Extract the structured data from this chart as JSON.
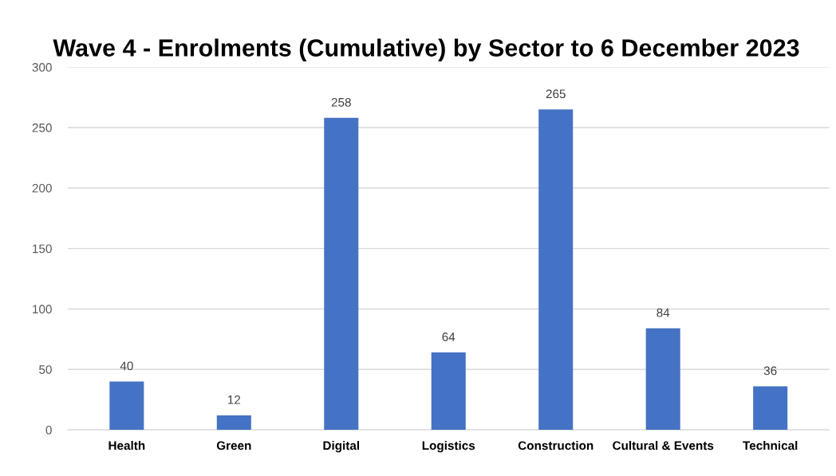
{
  "chart_data": {
    "type": "bar",
    "title": "Wave 4 - Enrolments (Cumulative) by Sector to 6 December 2023",
    "categories": [
      "Health",
      "Green",
      "Digital",
      "Logistics",
      "Construction",
      "Cultural & Events",
      "Technical"
    ],
    "values": [
      40,
      12,
      258,
      64,
      265,
      84,
      36
    ],
    "color": "#4472c4",
    "ylim": [
      0,
      300
    ],
    "yticks": [
      0,
      50,
      100,
      150,
      200,
      250,
      300
    ],
    "grid": "y",
    "data_labels": true
  }
}
